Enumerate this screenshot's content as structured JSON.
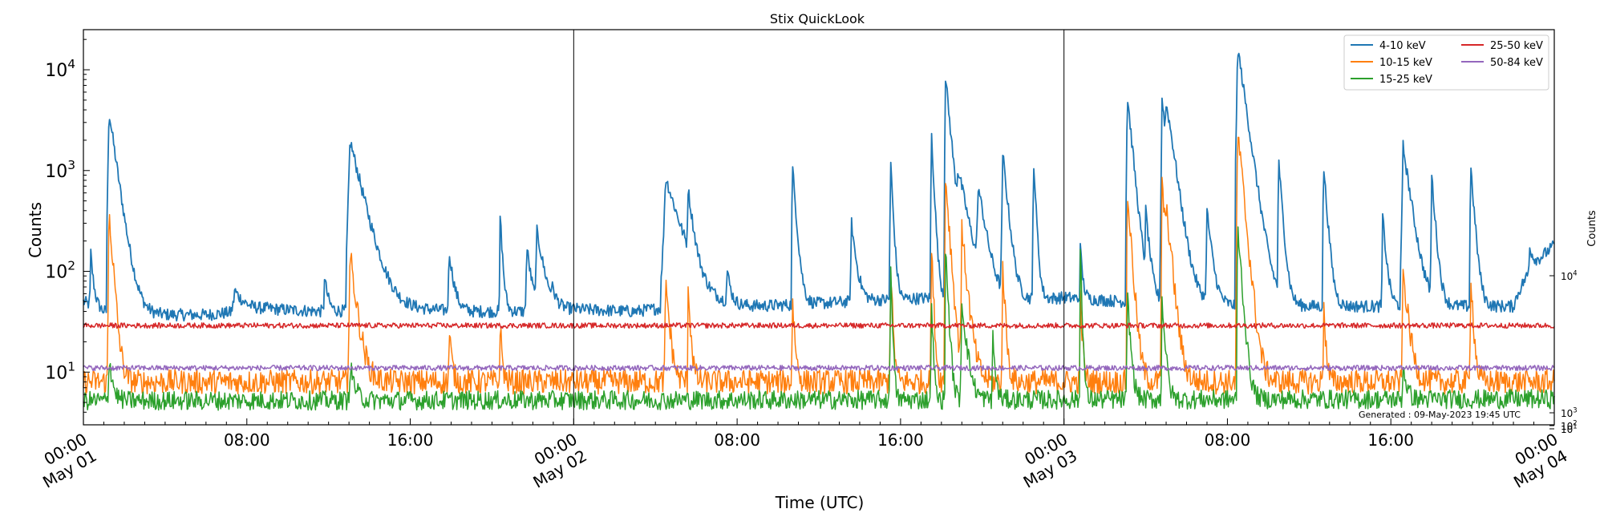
{
  "chart_data": {
    "type": "line",
    "title": "Stix QuickLook",
    "xlabel": "Time (UTC)",
    "ylabel": "Counts",
    "right_ylabel": "Counts",
    "yscale": "log",
    "ylim": [
      3,
      25000
    ],
    "xlim_hours": [
      0,
      72
    ],
    "y_ticks": [
      {
        "value": 10,
        "base": "10",
        "exp": "1"
      },
      {
        "value": 100,
        "base": "10",
        "exp": "2"
      },
      {
        "value": 1000,
        "base": "10",
        "exp": "3"
      },
      {
        "value": 10000,
        "base": "10",
        "exp": "4"
      }
    ],
    "right_y_ticks": [
      {
        "label_base": "10",
        "label_exp": "4"
      },
      {
        "label_base": "10",
        "label_exp": "3"
      },
      {
        "label_base": "10",
        "label_exp": "2"
      },
      {
        "label_base": "10",
        "label_exp": "1"
      }
    ],
    "x_ticks": [
      {
        "hour": 0,
        "line1": "00:00",
        "line2": "May 01"
      },
      {
        "hour": 8,
        "line1": "08:00",
        "line2": ""
      },
      {
        "hour": 16,
        "line1": "16:00",
        "line2": ""
      },
      {
        "hour": 24,
        "line1": "00:00",
        "line2": "May 02"
      },
      {
        "hour": 32,
        "line1": "08:00",
        "line2": ""
      },
      {
        "hour": 40,
        "line1": "16:00",
        "line2": ""
      },
      {
        "hour": 48,
        "line1": "00:00",
        "line2": "May 03"
      },
      {
        "hour": 56,
        "line1": "08:00",
        "line2": ""
      },
      {
        "hour": 64,
        "line1": "16:00",
        "line2": ""
      },
      {
        "hour": 72,
        "line1": "00:00",
        "line2": "May 04"
      }
    ],
    "day_boundaries_hours": [
      24,
      48
    ],
    "legend_position": "top-right",
    "annotation": "Generated : 09-May-2023 19:45 UTC",
    "series": [
      {
        "name": "4-10 keV",
        "color": "#1f77b4",
        "baseline": [
          [
            0,
            50
          ],
          [
            1,
            40
          ],
          [
            3,
            37
          ],
          [
            6,
            37
          ],
          [
            9,
            42
          ],
          [
            12,
            40
          ],
          [
            16,
            42
          ],
          [
            19,
            40
          ],
          [
            22,
            40
          ],
          [
            24,
            42
          ],
          [
            27,
            40
          ],
          [
            29,
            45
          ],
          [
            31,
            45
          ],
          [
            33,
            45
          ],
          [
            36,
            48
          ],
          [
            39,
            52
          ],
          [
            42,
            55
          ],
          [
            45,
            50
          ],
          [
            48,
            55
          ],
          [
            51,
            50
          ],
          [
            54,
            48
          ],
          [
            57,
            45
          ],
          [
            60,
            45
          ],
          [
            64,
            45
          ],
          [
            68,
            45
          ],
          [
            70,
            45
          ],
          [
            72,
            180
          ]
        ],
        "peaks": [
          {
            "t": 0.35,
            "v": 160,
            "w": 0.12
          },
          {
            "t": 1.25,
            "v": 3900,
            "w": 0.3
          },
          {
            "t": 7.4,
            "v": 65,
            "w": 0.5
          },
          {
            "t": 11.8,
            "v": 90,
            "w": 0.15
          },
          {
            "t": 13.05,
            "v": 2000,
            "w": 0.5
          },
          {
            "t": 17.9,
            "v": 160,
            "w": 0.2
          },
          {
            "t": 20.4,
            "v": 360,
            "w": 0.1
          },
          {
            "t": 21.7,
            "v": 180,
            "w": 0.2
          },
          {
            "t": 22.2,
            "v": 250,
            "w": 0.3
          },
          {
            "t": 22.9,
            "v": 75,
            "w": 0.15
          },
          {
            "t": 28.5,
            "v": 860,
            "w": 0.6
          },
          {
            "t": 29.6,
            "v": 660,
            "w": 0.2
          },
          {
            "t": 31.5,
            "v": 110,
            "w": 0.15
          },
          {
            "t": 34.7,
            "v": 1180,
            "w": 0.15
          },
          {
            "t": 37.6,
            "v": 300,
            "w": 0.2
          },
          {
            "t": 39.5,
            "v": 1400,
            "w": 0.1
          },
          {
            "t": 41.5,
            "v": 2700,
            "w": 0.1
          },
          {
            "t": 42.2,
            "v": 8500,
            "w": 0.2
          },
          {
            "t": 42.8,
            "v": 1000,
            "w": 0.4
          },
          {
            "t": 43.8,
            "v": 700,
            "w": 0.3
          },
          {
            "t": 45.0,
            "v": 1500,
            "w": 0.2
          },
          {
            "t": 46.5,
            "v": 1450,
            "w": 0.1
          },
          {
            "t": 48.8,
            "v": 170,
            "w": 0.1
          },
          {
            "t": 51.1,
            "v": 5700,
            "w": 0.2
          },
          {
            "t": 52.0,
            "v": 400,
            "w": 0.15
          },
          {
            "t": 52.8,
            "v": 5300,
            "w": 0.2
          },
          {
            "t": 53.0,
            "v": 4500,
            "w": 0.3
          },
          {
            "t": 55.0,
            "v": 400,
            "w": 0.2
          },
          {
            "t": 56.5,
            "v": 17000,
            "w": 0.3
          },
          {
            "t": 58.5,
            "v": 1300,
            "w": 0.15
          },
          {
            "t": 60.7,
            "v": 1200,
            "w": 0.15
          },
          {
            "t": 63.6,
            "v": 350,
            "w": 0.15
          },
          {
            "t": 64.6,
            "v": 1750,
            "w": 0.3
          },
          {
            "t": 66.0,
            "v": 900,
            "w": 0.15
          },
          {
            "t": 67.9,
            "v": 1200,
            "w": 0.15
          },
          {
            "t": 70.8,
            "v": 180,
            "w": 0.2
          }
        ]
      },
      {
        "name": "10-15 keV",
        "color": "#ff7f0e",
        "baseline": [
          [
            0,
            8
          ],
          [
            72,
            8
          ]
        ],
        "peaks": [
          {
            "t": 1.25,
            "v": 430,
            "w": 0.15
          },
          {
            "t": 13.05,
            "v": 150,
            "w": 0.25
          },
          {
            "t": 17.9,
            "v": 28,
            "w": 0.1
          },
          {
            "t": 20.4,
            "v": 30,
            "w": 0.08
          },
          {
            "t": 28.5,
            "v": 85,
            "w": 0.15
          },
          {
            "t": 29.6,
            "v": 75,
            "w": 0.1
          },
          {
            "t": 34.7,
            "v": 60,
            "w": 0.1
          },
          {
            "t": 39.5,
            "v": 120,
            "w": 0.08
          },
          {
            "t": 41.5,
            "v": 200,
            "w": 0.08
          },
          {
            "t": 42.2,
            "v": 900,
            "w": 0.15
          },
          {
            "t": 43.0,
            "v": 250,
            "w": 0.2
          },
          {
            "t": 45.0,
            "v": 120,
            "w": 0.1
          },
          {
            "t": 48.8,
            "v": 55,
            "w": 0.08
          },
          {
            "t": 51.1,
            "v": 640,
            "w": 0.15
          },
          {
            "t": 52.8,
            "v": 760,
            "w": 0.15
          },
          {
            "t": 53.0,
            "v": 400,
            "w": 0.2
          },
          {
            "t": 56.5,
            "v": 2500,
            "w": 0.2
          },
          {
            "t": 60.7,
            "v": 60,
            "w": 0.08
          },
          {
            "t": 64.6,
            "v": 100,
            "w": 0.2
          },
          {
            "t": 67.9,
            "v": 110,
            "w": 0.1
          }
        ]
      },
      {
        "name": "15-25 keV",
        "color": "#2ca02c",
        "baseline": [
          [
            0,
            5.2
          ],
          [
            72,
            5.4
          ]
        ],
        "peaks": [
          {
            "t": 1.25,
            "v": 15,
            "w": 0.15
          },
          {
            "t": 13.05,
            "v": 12,
            "w": 0.2
          },
          {
            "t": 39.5,
            "v": 170,
            "w": 0.06
          },
          {
            "t": 41.5,
            "v": 75,
            "w": 0.06
          },
          {
            "t": 42.2,
            "v": 180,
            "w": 0.1
          },
          {
            "t": 43.0,
            "v": 50,
            "w": 0.2
          },
          {
            "t": 44.5,
            "v": 25,
            "w": 0.1
          },
          {
            "t": 48.8,
            "v": 180,
            "w": 0.06
          },
          {
            "t": 51.1,
            "v": 60,
            "w": 0.12
          },
          {
            "t": 52.8,
            "v": 55,
            "w": 0.12
          },
          {
            "t": 56.5,
            "v": 300,
            "w": 0.15
          },
          {
            "t": 64.6,
            "v": 12,
            "w": 0.15
          }
        ]
      },
      {
        "name": "25-50 keV",
        "color": "#d62728",
        "baseline": [
          [
            0,
            29
          ],
          [
            72,
            29
          ]
        ],
        "peaks": []
      },
      {
        "name": "50-84 keV",
        "color": "#9467bd",
        "baseline": [
          [
            0,
            11
          ],
          [
            72,
            11
          ]
        ],
        "peaks": []
      }
    ]
  }
}
